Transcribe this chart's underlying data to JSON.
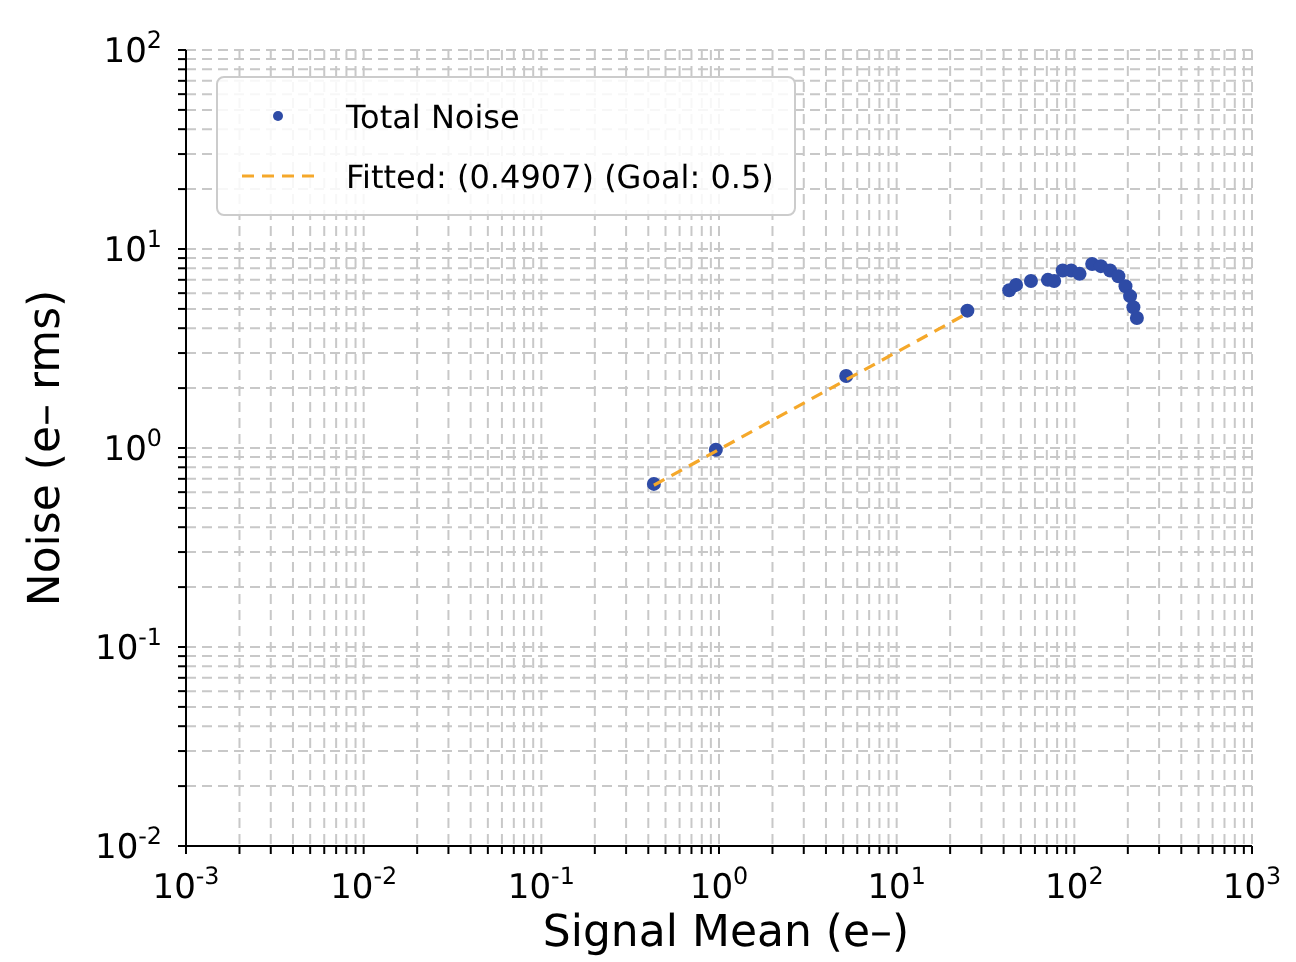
{
  "chart_data": {
    "type": "scatter",
    "xlabel": "Signal Mean (e–)",
    "ylabel": "Noise (e– rms)",
    "log": "xy",
    "grid": true,
    "legend": "top left",
    "xlim": [
      0.001,
      1000
    ],
    "ylim": [
      0.01,
      100
    ],
    "xticks": [
      {
        "value": 0.001,
        "label": "10$^{-3}$"
      },
      {
        "value": 0.002,
        "label": null
      },
      {
        "value": 0.003,
        "label": null
      },
      {
        "value": 0.004,
        "label": null
      },
      {
        "value": 0.005,
        "label": null
      },
      {
        "value": 0.006,
        "label": null
      },
      {
        "value": 0.007,
        "label": null
      },
      {
        "value": 0.008,
        "label": null
      },
      {
        "value": 0.009,
        "label": null
      },
      {
        "value": 0.01,
        "label": "10$^{-2}$"
      },
      {
        "value": 0.02,
        "label": null
      },
      {
        "value": 0.03,
        "label": null
      },
      {
        "value": 0.04,
        "label": null
      },
      {
        "value": 0.05,
        "label": null
      },
      {
        "value": 0.06,
        "label": null
      },
      {
        "value": 0.07,
        "label": null
      },
      {
        "value": 0.08,
        "label": null
      },
      {
        "value": 0.09,
        "label": null
      },
      {
        "value": 0.1,
        "label": "10$^{-1}$"
      },
      {
        "value": 0.2,
        "label": null
      },
      {
        "value": 0.3,
        "label": null
      },
      {
        "value": 0.4,
        "label": null
      },
      {
        "value": 0.5,
        "label": null
      },
      {
        "value": 0.6,
        "label": null
      },
      {
        "value": 0.7,
        "label": null
      },
      {
        "value": 0.8,
        "label": null
      },
      {
        "value": 0.9,
        "label": null
      },
      {
        "value": 1,
        "label": "10$^{0}$"
      },
      {
        "value": 2,
        "label": null
      },
      {
        "value": 3,
        "label": null
      },
      {
        "value": 4,
        "label": null
      },
      {
        "value": 5,
        "label": null
      },
      {
        "value": 6,
        "label": null
      },
      {
        "value": 7,
        "label": null
      },
      {
        "value": 8,
        "label": null
      },
      {
        "value": 9,
        "label": null
      },
      {
        "value": 10,
        "label": "10$^{1}$"
      },
      {
        "value": 20,
        "label": null
      },
      {
        "value": 30,
        "label": null
      },
      {
        "value": 40,
        "label": null
      },
      {
        "value": 50,
        "label": null
      },
      {
        "value": 60,
        "label": null
      },
      {
        "value": 70,
        "label": null
      },
      {
        "value": 80,
        "label": null
      },
      {
        "value": 90,
        "label": null
      },
      {
        "value": 100,
        "label": "10$^{2}$"
      },
      {
        "value": 200,
        "label": null
      },
      {
        "value": 300,
        "label": null
      },
      {
        "value": 400,
        "label": null
      },
      {
        "value": 500,
        "label": null
      },
      {
        "value": 600,
        "label": null
      },
      {
        "value": 700,
        "label": null
      },
      {
        "value": 800,
        "label": null
      },
      {
        "value": 900,
        "label": null
      },
      {
        "value": 1000,
        "label": "10$^{3}$"
      }
    ],
    "yticks": [
      {
        "value": 0.01,
        "label": "10$^{-2}$"
      },
      {
        "value": 0.02,
        "label": null
      },
      {
        "value": 0.03,
        "label": null
      },
      {
        "value": 0.04,
        "label": null
      },
      {
        "value": 0.05,
        "label": null
      },
      {
        "value": 0.06,
        "label": null
      },
      {
        "value": 0.07,
        "label": null
      },
      {
        "value": 0.08,
        "label": null
      },
      {
        "value": 0.09,
        "label": null
      },
      {
        "value": 0.1,
        "label": "10$^{-1}$"
      },
      {
        "value": 0.2,
        "label": null
      },
      {
        "value": 0.3,
        "label": null
      },
      {
        "value": 0.4,
        "label": null
      },
      {
        "value": 0.5,
        "label": null
      },
      {
        "value": 0.6,
        "label": null
      },
      {
        "value": 0.7,
        "label": null
      },
      {
        "value": 0.8,
        "label": null
      },
      {
        "value": 0.9,
        "label": null
      },
      {
        "value": 1,
        "label": "10$^{0}$"
      },
      {
        "value": 2,
        "label": null
      },
      {
        "value": 3,
        "label": null
      },
      {
        "value": 4,
        "label": null
      },
      {
        "value": 5,
        "label": null
      },
      {
        "value": 6,
        "label": null
      },
      {
        "value": 7,
        "label": null
      },
      {
        "value": 8,
        "label": null
      },
      {
        "value": 9,
        "label": null
      },
      {
        "value": 10,
        "label": "10$^{1}$"
      },
      {
        "value": 20,
        "label": null
      },
      {
        "value": 30,
        "label": null
      },
      {
        "value": 40,
        "label": null
      },
      {
        "value": 50,
        "label": null
      },
      {
        "value": 60,
        "label": null
      },
      {
        "value": 70,
        "label": null
      },
      {
        "value": 80,
        "label": null
      },
      {
        "value": 90,
        "label": null
      },
      {
        "value": 100,
        "label": "10$^{2}$"
      }
    ],
    "series": [
      {
        "name": "Total Noise",
        "marker": "circle",
        "color": "#2e4ba6",
        "x": [
          0.43,
          0.96,
          5.2,
          25,
          43,
          47,
          57,
          71,
          77,
          86,
          96,
          107,
          126,
          141,
          159,
          177,
          194,
          206,
          215,
          225
        ],
        "values": [
          0.66,
          0.98,
          2.3,
          4.9,
          6.2,
          6.6,
          6.9,
          7.0,
          6.9,
          7.8,
          7.8,
          7.5,
          8.4,
          8.2,
          7.8,
          7.3,
          6.5,
          5.8,
          5.1,
          4.5
        ]
      },
      {
        "name": "Fitted: (0.4907) (Goal: 0.5)",
        "type": "line",
        "line_style": "dashed",
        "color": "#f5a82a",
        "x": [
          0.43,
          25
        ],
        "values": [
          0.65,
          4.75
        ]
      }
    ]
  }
}
